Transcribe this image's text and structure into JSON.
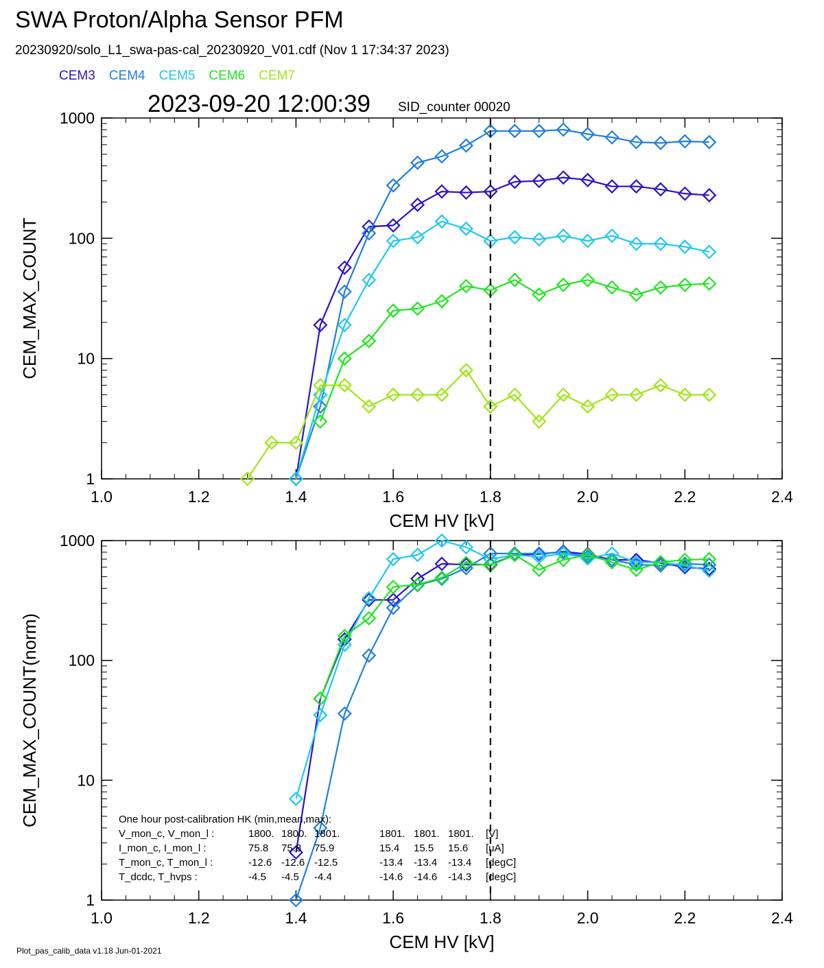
{
  "header": {
    "title": "SWA Proton/Alpha Sensor PFM",
    "subtitle": "20230920/solo_L1_swa-pas-cal_20230920_V01.cdf  (Nov  1 17:34:37 2023)",
    "datetime": "2023-09-20 12:00:39",
    "sid": "SID_counter 00020"
  },
  "footer": "Plot_pas_calib_data v1.18 Jun-01-2021",
  "legend": [
    {
      "name": "CEM3",
      "color": "#2a14c8"
    },
    {
      "name": "CEM4",
      "color": "#1e7fe0"
    },
    {
      "name": "CEM5",
      "color": "#1ec8f0"
    },
    {
      "name": "CEM6",
      "color": "#1ee61e"
    },
    {
      "name": "CEM7",
      "color": "#a0e614"
    }
  ],
  "chart_data": [
    {
      "type": "line",
      "xlabel": "CEM HV [kV]",
      "ylabel": "CEM_MAX_COUNT",
      "xlim": [
        1.0,
        2.4
      ],
      "ylim": [
        1,
        1000
      ],
      "yscale": "log",
      "xticks": [
        "1.0",
        "1.2",
        "1.4",
        "1.6",
        "1.8",
        "2.0",
        "2.2",
        "2.4"
      ],
      "yticks": [
        "1",
        "10",
        "100",
        "1000"
      ],
      "vline": 1.8,
      "series": [
        {
          "name": "CEM3",
          "color": "#2a14c8",
          "x": [
            1.4,
            1.45,
            1.5,
            1.55,
            1.6,
            1.65,
            1.7,
            1.75,
            1.8,
            1.85,
            1.9,
            1.95,
            2.0,
            2.05,
            2.1,
            2.15,
            2.2,
            2.25
          ],
          "values": [
            1,
            19,
            57,
            125,
            128,
            190,
            245,
            240,
            245,
            295,
            300,
            320,
            305,
            270,
            270,
            255,
            235,
            228
          ]
        },
        {
          "name": "CEM4",
          "color": "#1e7fe0",
          "x": [
            1.4,
            1.45,
            1.5,
            1.55,
            1.6,
            1.65,
            1.7,
            1.75,
            1.8,
            1.85,
            1.9,
            1.95,
            2.0,
            2.05,
            2.1,
            2.15,
            2.2,
            2.25
          ],
          "values": [
            1,
            4,
            36,
            110,
            275,
            425,
            480,
            590,
            780,
            780,
            780,
            800,
            735,
            690,
            630,
            620,
            640,
            630
          ]
        },
        {
          "name": "CEM5",
          "color": "#1ec8f0",
          "x": [
            1.4,
            1.45,
            1.5,
            1.55,
            1.6,
            1.65,
            1.7,
            1.75,
            1.8,
            1.85,
            1.9,
            1.95,
            2.0,
            2.05,
            2.1,
            2.15,
            2.2,
            2.25
          ],
          "values": [
            1,
            5,
            19,
            45,
            95,
            102,
            138,
            120,
            95,
            102,
            98,
            105,
            95,
            105,
            90,
            90,
            85,
            77
          ]
        },
        {
          "name": "CEM6",
          "color": "#1ee61e",
          "x": [
            1.45,
            1.5,
            1.55,
            1.6,
            1.65,
            1.7,
            1.75,
            1.8,
            1.85,
            1.9,
            1.95,
            2.0,
            2.05,
            2.1,
            2.15,
            2.2,
            2.25
          ],
          "values": [
            3,
            10,
            14,
            25,
            26,
            30,
            40,
            37,
            45,
            34,
            41,
            45,
            39,
            34,
            39,
            41,
            42
          ]
        },
        {
          "name": "CEM7",
          "color": "#a0e614",
          "x": [
            1.3,
            1.35,
            1.4,
            1.45,
            1.5,
            1.55,
            1.6,
            1.65,
            1.7,
            1.75,
            1.8,
            1.85,
            1.9,
            1.95,
            2.0,
            2.05,
            2.1,
            2.15,
            2.2,
            2.25
          ],
          "values": [
            1,
            2,
            2,
            6,
            6,
            4,
            5,
            5,
            5,
            8,
            4,
            5,
            3,
            5,
            4,
            5,
            5,
            6,
            5,
            5
          ]
        }
      ]
    },
    {
      "type": "line",
      "xlabel": "CEM HV [kV]",
      "ylabel": "CEM_MAX_COUNT(norm)",
      "xlim": [
        1.0,
        2.4
      ],
      "ylim": [
        1,
        1000
      ],
      "yscale": "log",
      "xticks": [
        "1.0",
        "1.2",
        "1.4",
        "1.6",
        "1.8",
        "2.0",
        "2.2",
        "2.4"
      ],
      "yticks": [
        "1",
        "10",
        "100",
        "1000"
      ],
      "vline": 1.8,
      "series": [
        {
          "name": "CEM3",
          "color": "#2a14c8",
          "x": [
            1.4,
            1.45,
            1.5,
            1.55,
            1.6,
            1.65,
            1.7,
            1.75,
            1.8,
            1.85,
            1.9,
            1.95,
            2.0,
            2.05,
            2.1,
            2.15,
            2.2,
            2.25
          ],
          "values": [
            2.5,
            48,
            150,
            320,
            320,
            480,
            640,
            630,
            630,
            760,
            770,
            810,
            770,
            690,
            690,
            650,
            600,
            580
          ]
        },
        {
          "name": "CEM4",
          "color": "#1e7fe0",
          "x": [
            1.4,
            1.45,
            1.5,
            1.55,
            1.6,
            1.65,
            1.7,
            1.75,
            1.8,
            1.85,
            1.9,
            1.95,
            2.0,
            2.05,
            2.1,
            2.15,
            2.2,
            2.25
          ],
          "values": [
            1,
            4,
            36,
            110,
            275,
            425,
            480,
            590,
            780,
            780,
            780,
            800,
            735,
            690,
            630,
            620,
            640,
            630
          ]
        },
        {
          "name": "CEM5",
          "color": "#1ec8f0",
          "x": [
            1.4,
            1.45,
            1.5,
            1.55,
            1.6,
            1.65,
            1.7,
            1.75,
            1.8,
            1.85,
            1.9,
            1.95,
            2.0,
            2.05,
            2.1,
            2.15,
            2.2,
            2.25
          ],
          "values": [
            7,
            35,
            135,
            330,
            700,
            760,
            1000,
            880,
            700,
            760,
            730,
            780,
            710,
            780,
            660,
            660,
            620,
            560
          ]
        },
        {
          "name": "CEM6",
          "color": "#1ee61e",
          "x": [
            1.45,
            1.5,
            1.55,
            1.6,
            1.65,
            1.7,
            1.75,
            1.8,
            1.85,
            1.9,
            1.95,
            2.0,
            2.05,
            2.1,
            2.15,
            2.2,
            2.25
          ],
          "values": [
            48,
            160,
            225,
            410,
            430,
            490,
            650,
            620,
            760,
            570,
            690,
            760,
            660,
            570,
            660,
            690,
            700
          ]
        }
      ],
      "hk_table": {
        "heading": "One hour post-calibration HK (min,mean,max):",
        "rows": [
          [
            "V_mon_c, V_mon_l :",
            "1800.",
            "1800.",
            "1801.",
            "1801.",
            "1801.",
            "1801.",
            "[V]"
          ],
          [
            "I_mon_c,  I_mon_l :",
            "75.8",
            "75.8",
            "75.9",
            "15.4",
            "15.5",
            "15.6",
            "[uA]"
          ],
          [
            "T_mon_c, T_mon_l :",
            "-12.6",
            "-12.6",
            "-12.5",
            "-13.4",
            "-13.4",
            "-13.4",
            "[degC]"
          ],
          [
            "T_dcdc,    T_hvps :",
            "-4.5",
            "-4.5",
            "-4.4",
            "-14.6",
            "-14.6",
            "-14.3",
            "[degC]"
          ]
        ]
      }
    }
  ]
}
